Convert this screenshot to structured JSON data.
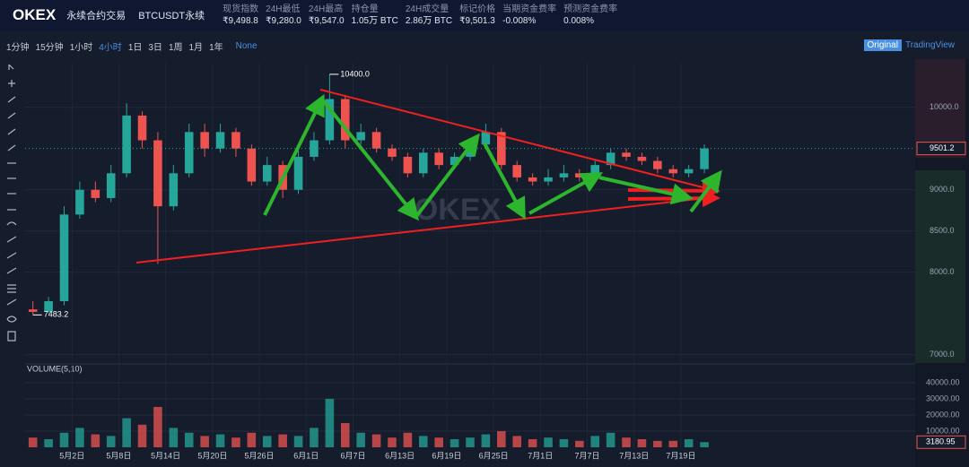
{
  "header": {
    "brand": "OKEX",
    "product": "永续合约交易",
    "instrument": "BTCUSDT永续",
    "stats": [
      {
        "label": "现货指数",
        "value": "₹9,498.8"
      },
      {
        "label": "24H最低",
        "value": "₹9,280.0"
      },
      {
        "label": "24H最高",
        "value": "₹9,547.0"
      },
      {
        "label": "持仓量",
        "value": "1.05万 BTC"
      },
      {
        "label": "24H成交量",
        "value": "2.86万 BTC"
      },
      {
        "label": "标记价格",
        "value": "₹9,501.3"
      },
      {
        "label": "当期资金费率",
        "value": "-0.008%"
      },
      {
        "label": "预测资金费率",
        "value": "0.008%"
      }
    ]
  },
  "toolbar": {
    "intervals": [
      "1分钟",
      "15分钟",
      "1小时",
      "4小时",
      "1日",
      "3日",
      "1周",
      "1月",
      "1年"
    ],
    "active": "4小时",
    "indicator": "None",
    "views": [
      "Original",
      "TradingView"
    ]
  },
  "chart_data": {
    "type": "candlestick",
    "watermark": "OKEX",
    "volume_title": "VOLUME(5,10)",
    "up_color": "#26a69a",
    "down_color": "#ef5350",
    "x": [
      -5,
      -3,
      -1,
      1,
      3,
      5,
      7,
      9,
      11,
      13,
      15,
      17,
      19,
      21,
      23,
      25,
      27,
      29,
      31,
      33,
      35,
      37,
      39,
      41,
      43,
      45,
      47,
      49,
      51,
      53,
      55,
      57,
      59,
      61,
      63,
      65,
      67,
      69,
      71,
      73,
      75,
      77,
      79,
      81
    ],
    "open": [
      7550,
      7520,
      7650,
      8700,
      9000,
      8900,
      9200,
      9900,
      9600,
      8800,
      9200,
      9700,
      9500,
      9700,
      9500,
      9100,
      9300,
      9000,
      9400,
      9600,
      10100,
      9600,
      9700,
      9500,
      9400,
      9200,
      9450,
      9300,
      9400,
      9550,
      9700,
      9300,
      9150,
      9100,
      9150,
      9200,
      9150,
      9300,
      9450,
      9400,
      9350,
      9250,
      9200,
      9250
    ],
    "high": [
      7650,
      7700,
      8800,
      9100,
      9100,
      9300,
      10050,
      9950,
      9700,
      9300,
      9800,
      9800,
      9800,
      9750,
      9550,
      9400,
      9350,
      9500,
      9700,
      10400,
      10150,
      9800,
      9750,
      9550,
      9450,
      9500,
      9500,
      9450,
      9600,
      9800,
      9750,
      9350,
      9200,
      9250,
      9300,
      9250,
      9350,
      9500,
      9500,
      9450,
      9400,
      9300,
      9300,
      9550
    ],
    "low": [
      7483.2,
      7500,
      7600,
      8650,
      8850,
      8850,
      9150,
      9500,
      8100,
      8750,
      9150,
      9400,
      9450,
      9400,
      9050,
      9050,
      8900,
      8950,
      9350,
      9550,
      9500,
      9550,
      9450,
      9350,
      9150,
      9150,
      9250,
      9250,
      9350,
      9500,
      9250,
      9100,
      9050,
      9050,
      9100,
      9100,
      9100,
      9250,
      9350,
      9300,
      9200,
      9150,
      9150,
      9200
    ],
    "close": [
      7520,
      7650,
      8700,
      9000,
      8900,
      9200,
      9900,
      9600,
      8800,
      9200,
      9700,
      9500,
      9700,
      9500,
      9100,
      9300,
      9000,
      9400,
      9600,
      10100,
      9600,
      9700,
      9500,
      9400,
      9200,
      9450,
      9300,
      9400,
      9550,
      9700,
      9300,
      9150,
      9100,
      9150,
      9200,
      9150,
      9300,
      9450,
      9400,
      9350,
      9250,
      9200,
      9250,
      9501.2
    ],
    "volume": [
      6000,
      5000,
      9000,
      12000,
      8000,
      7000,
      18000,
      14000,
      25000,
      12000,
      9000,
      7000,
      8000,
      6000,
      9000,
      7000,
      8000,
      7000,
      12000,
      30000,
      15000,
      9000,
      8000,
      6000,
      9000,
      7000,
      6000,
      5000,
      6000,
      8000,
      10000,
      7000,
      5000,
      6000,
      5000,
      4000,
      7000,
      9000,
      6000,
      5000,
      4000,
      4000,
      5000,
      3180.95
    ],
    "xlim": [
      -6,
      108
    ],
    "xticks": [
      {
        "value": 0,
        "label": "5月2日"
      },
      {
        "value": 6,
        "label": "5月8日"
      },
      {
        "value": 12,
        "label": "5月14日"
      },
      {
        "value": 18,
        "label": "5月20日"
      },
      {
        "value": 24,
        "label": "5月26日"
      },
      {
        "value": 30,
        "label": "6月1日"
      },
      {
        "value": 36,
        "label": "6月7日"
      },
      {
        "value": 42,
        "label": "6月13日"
      },
      {
        "value": 48,
        "label": "6月19日"
      },
      {
        "value": 54,
        "label": "6月25日"
      },
      {
        "value": 60,
        "label": "7月1日"
      },
      {
        "value": 66,
        "label": "7月7日"
      },
      {
        "value": 72,
        "label": "7月13日"
      },
      {
        "value": 78,
        "label": "7月19日"
      }
    ],
    "ylim": [
      6900,
      10540
    ],
    "yticks": [
      {
        "value": 7000,
        "label": "7000.0"
      },
      {
        "value": 8000,
        "label": "8000.0"
      },
      {
        "value": 8500,
        "label": "8500.0"
      },
      {
        "value": 9000,
        "label": "9000.0"
      },
      {
        "value": 10000,
        "label": "10000.0"
      }
    ],
    "vol_ylim": [
      0,
      50500
    ],
    "vol_yticks": [
      {
        "value": 10000,
        "label": "10000.00"
      },
      {
        "value": 20000,
        "label": "20000.00"
      },
      {
        "value": 30000,
        "label": "30000.00"
      },
      {
        "value": 40000,
        "label": "40000.00"
      }
    ],
    "grid": true,
    "high_marker": {
      "x": 33,
      "value": 10400,
      "label": "10400.0"
    },
    "low_marker": {
      "x": -5,
      "value": 7483.2,
      "label": "7483.2"
    },
    "last_price": {
      "value": 9501.2,
      "label": "9501.2"
    },
    "last_volume": {
      "value": 3180.95,
      "label": "3180.95"
    }
  }
}
